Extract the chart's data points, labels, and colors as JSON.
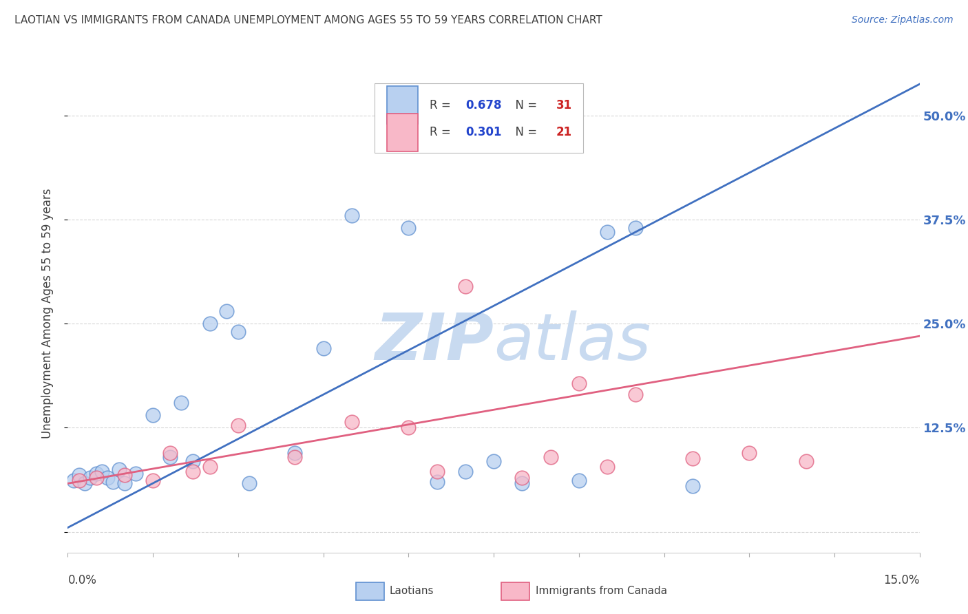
{
  "title": "LAOTIAN VS IMMIGRANTS FROM CANADA UNEMPLOYMENT AMONG AGES 55 TO 59 YEARS CORRELATION CHART",
  "source": "Source: ZipAtlas.com",
  "ylabel": "Unemployment Among Ages 55 to 59 years",
  "ytick_labels": [
    "",
    "12.5%",
    "25.0%",
    "37.5%",
    "50.0%"
  ],
  "ytick_values": [
    0.0,
    0.125,
    0.25,
    0.375,
    0.5
  ],
  "xlim": [
    0.0,
    0.15
  ],
  "ylim": [
    -0.025,
    0.55
  ],
  "legend1_R": "0.678",
  "legend1_N": "31",
  "legend2_R": "0.301",
  "legend2_N": "21",
  "color_laotian_fill": "#b8d0f0",
  "color_laotian_edge": "#6090d0",
  "color_canada_fill": "#f8b8c8",
  "color_canada_edge": "#e06080",
  "color_laotian_line": "#4070c0",
  "color_canada_line": "#e06080",
  "laotian_x": [
    0.001,
    0.002,
    0.003,
    0.004,
    0.005,
    0.006,
    0.007,
    0.008,
    0.009,
    0.01,
    0.012,
    0.015,
    0.018,
    0.02,
    0.022,
    0.025,
    0.028,
    0.03,
    0.032,
    0.04,
    0.045,
    0.05,
    0.06,
    0.065,
    0.07,
    0.075,
    0.08,
    0.09,
    0.095,
    0.1,
    0.11
  ],
  "laotian_y": [
    0.062,
    0.068,
    0.058,
    0.065,
    0.07,
    0.072,
    0.065,
    0.06,
    0.075,
    0.058,
    0.07,
    0.14,
    0.09,
    0.155,
    0.085,
    0.25,
    0.265,
    0.24,
    0.058,
    0.095,
    0.22,
    0.38,
    0.365,
    0.06,
    0.072,
    0.085,
    0.058,
    0.062,
    0.36,
    0.365,
    0.055
  ],
  "canada_x": [
    0.002,
    0.005,
    0.01,
    0.015,
    0.018,
    0.022,
    0.025,
    0.03,
    0.04,
    0.05,
    0.06,
    0.065,
    0.07,
    0.08,
    0.085,
    0.09,
    0.095,
    0.1,
    0.11,
    0.12,
    0.13
  ],
  "canada_y": [
    0.062,
    0.065,
    0.068,
    0.062,
    0.095,
    0.072,
    0.078,
    0.128,
    0.09,
    0.132,
    0.125,
    0.072,
    0.295,
    0.065,
    0.09,
    0.178,
    0.078,
    0.165,
    0.088,
    0.095,
    0.085
  ],
  "laotian_slope": 3.55,
  "laotian_intercept": 0.005,
  "canada_slope": 1.18,
  "canada_intercept": 0.058,
  "grid_color": "#cccccc",
  "background_color": "#ffffff",
  "title_color": "#404040",
  "label_color": "#404040",
  "legend_R_color": "#2244cc",
  "legend_N_color": "#cc2222",
  "watermark_color": "#d8e8f8",
  "watermark_text_color": "#c8daf0"
}
